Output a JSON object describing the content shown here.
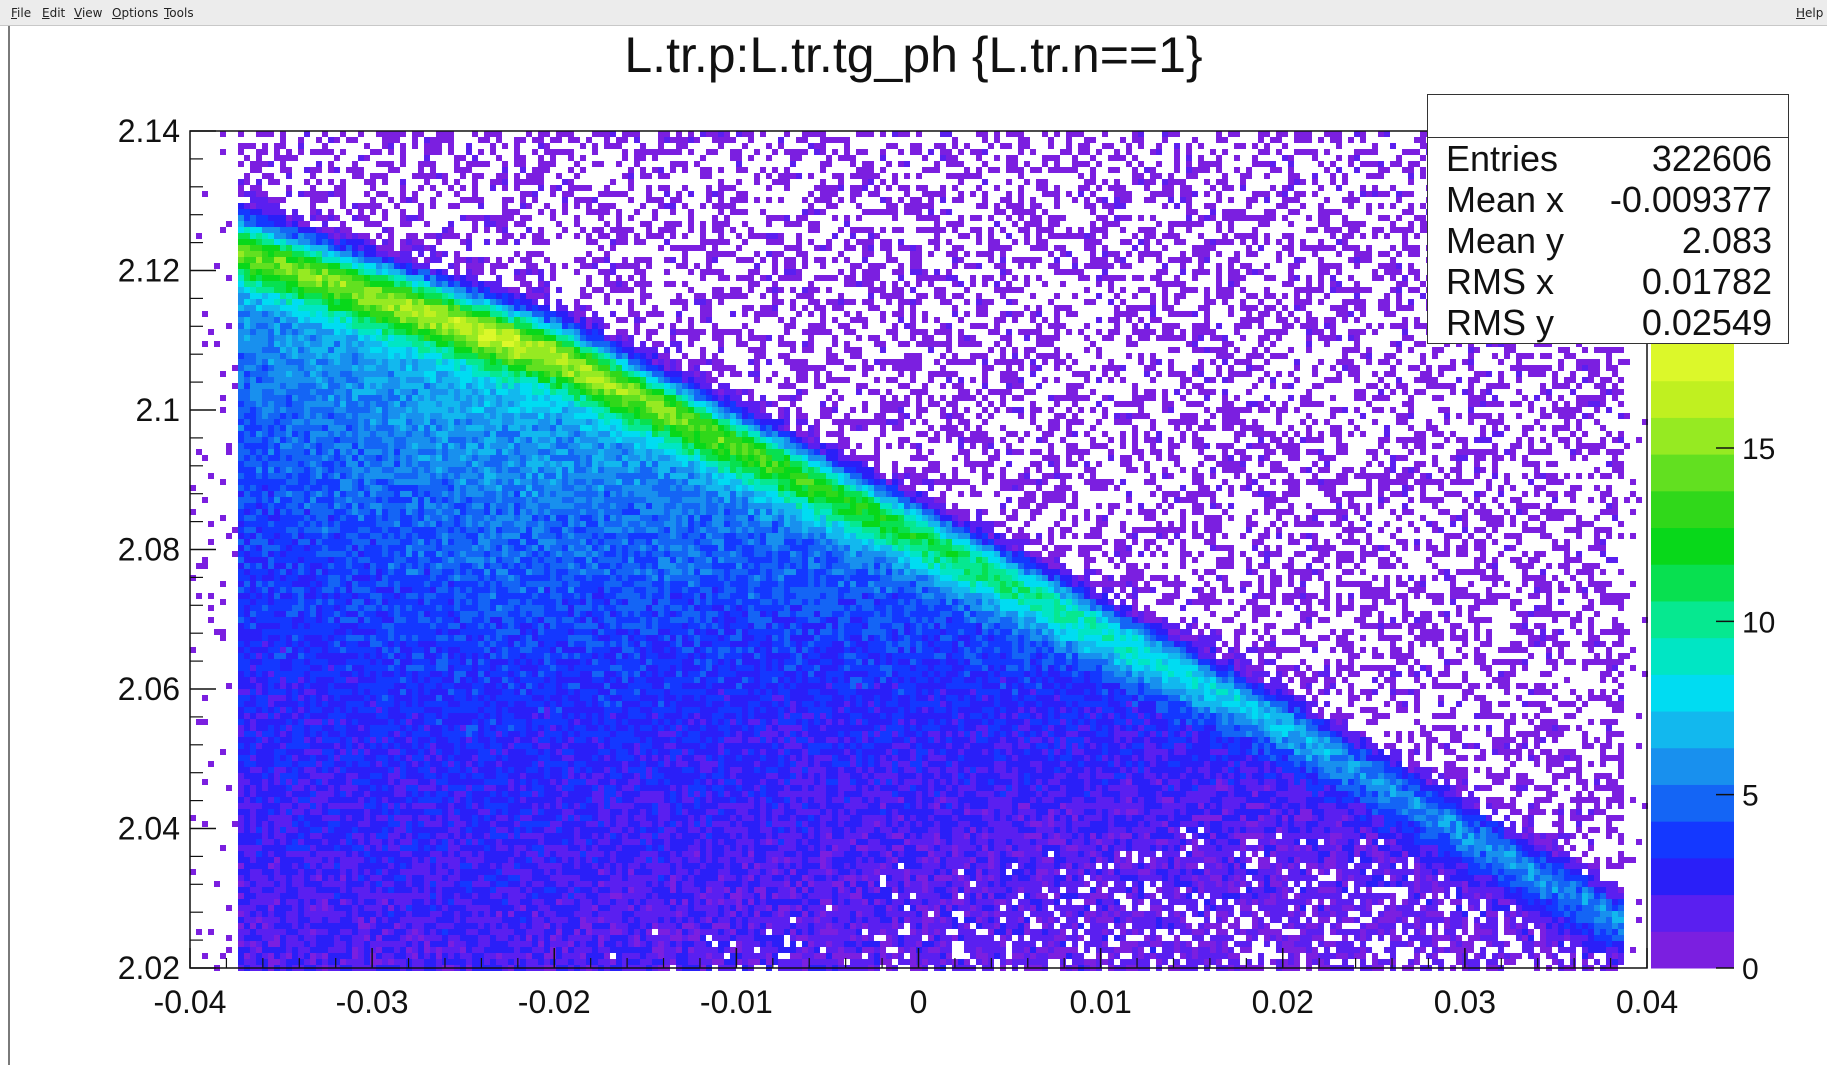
{
  "window": {
    "menu": [
      "File",
      "Edit",
      "View",
      "Options",
      "Tools"
    ],
    "help": "Help"
  },
  "title": "L.tr.p:L.tr.tg_ph {L.tr.n==1}",
  "stats": {
    "rows": [
      {
        "label": "Entries",
        "value": "322606"
      },
      {
        "label": "Mean x",
        "value": "-0.009377"
      },
      {
        "label": "Mean y",
        "value": "2.083"
      },
      {
        "label": "RMS x",
        "value": "0.01782"
      },
      {
        "label": "RMS y",
        "value": "0.02549"
      }
    ]
  },
  "chart_data": {
    "type": "heatmap",
    "title": "L.tr.p:L.tr.tg_ph {L.tr.n==1}",
    "xlim": [
      -0.04,
      0.04
    ],
    "ylim": [
      2.02,
      2.14
    ],
    "x_ticks": [
      "-0.04",
      "-0.03",
      "-0.02",
      "-0.01",
      "0",
      "0.01",
      "0.02",
      "0.03",
      "0.04"
    ],
    "y_ticks": [
      "2.02",
      "2.04",
      "2.06",
      "2.08",
      "2.1",
      "2.12",
      "2.14"
    ],
    "x_tick_values": [
      -0.04,
      -0.03,
      -0.02,
      -0.01,
      0,
      0.01,
      0.02,
      0.03,
      0.04
    ],
    "y_tick_values": [
      2.02,
      2.04,
      2.06,
      2.08,
      2.1,
      2.12,
      2.14
    ],
    "ridge": [
      {
        "x": -0.035,
        "y": 2.121
      },
      {
        "x": -0.02,
        "y": 2.108
      },
      {
        "x": 0.0,
        "y": 2.082
      },
      {
        "x": 0.02,
        "y": 2.055
      },
      {
        "x": 0.035,
        "y": 2.032
      }
    ],
    "z_range": [
      0,
      18
    ],
    "z_ticks": [
      "0",
      "5",
      "10",
      "15"
    ],
    "z_tick_values": [
      0,
      5,
      10,
      15
    ],
    "palette": [
      "#7b1fe0",
      "#5a1ff0",
      "#2a1ff8",
      "#1438ff",
      "#1465f5",
      "#1890ee",
      "#12b8ee",
      "#00dcf2",
      "#00e6c4",
      "#06e890",
      "#08e050",
      "#08d81a",
      "#30d81a",
      "#62e020",
      "#96ea22",
      "#c0f020",
      "#dcf82a"
    ],
    "grid": false
  }
}
